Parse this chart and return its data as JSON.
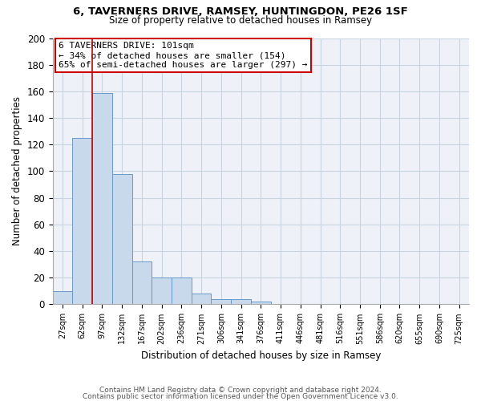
{
  "title1": "6, TAVERNERS DRIVE, RAMSEY, HUNTINGDON, PE26 1SF",
  "title2": "Size of property relative to detached houses in Ramsey",
  "xlabel": "Distribution of detached houses by size in Ramsey",
  "ylabel": "Number of detached properties",
  "footer1": "Contains HM Land Registry data © Crown copyright and database right 2024.",
  "footer2": "Contains public sector information licensed under the Open Government Licence v3.0.",
  "bin_labels": [
    "27sqm",
    "62sqm",
    "97sqm",
    "132sqm",
    "167sqm",
    "202sqm",
    "236sqm",
    "271sqm",
    "306sqm",
    "341sqm",
    "376sqm",
    "411sqm",
    "446sqm",
    "481sqm",
    "516sqm",
    "551sqm",
    "586sqm",
    "620sqm",
    "655sqm",
    "690sqm",
    "725sqm"
  ],
  "bar_values": [
    10,
    125,
    159,
    98,
    32,
    20,
    20,
    8,
    4,
    4,
    2,
    0,
    0,
    0,
    0,
    0,
    0,
    0,
    0,
    0,
    0
  ],
  "bar_color": "#c8d9ec",
  "bar_edge_color": "#6699cc",
  "grid_color": "#c8d4e0",
  "background_color": "#eef2f8",
  "annotation_box_color": "#ffffff",
  "annotation_border_color": "#cc0000",
  "property_line_color": "#cc0000",
  "property_line_x": 2.0,
  "annotation_text_line1": "6 TAVERNERS DRIVE: 101sqm",
  "annotation_text_line2": "← 34% of detached houses are smaller (154)",
  "annotation_text_line3": "65% of semi-detached houses are larger (297) →",
  "ylim": [
    0,
    200
  ],
  "yticks": [
    0,
    20,
    40,
    60,
    80,
    100,
    120,
    140,
    160,
    180,
    200
  ]
}
